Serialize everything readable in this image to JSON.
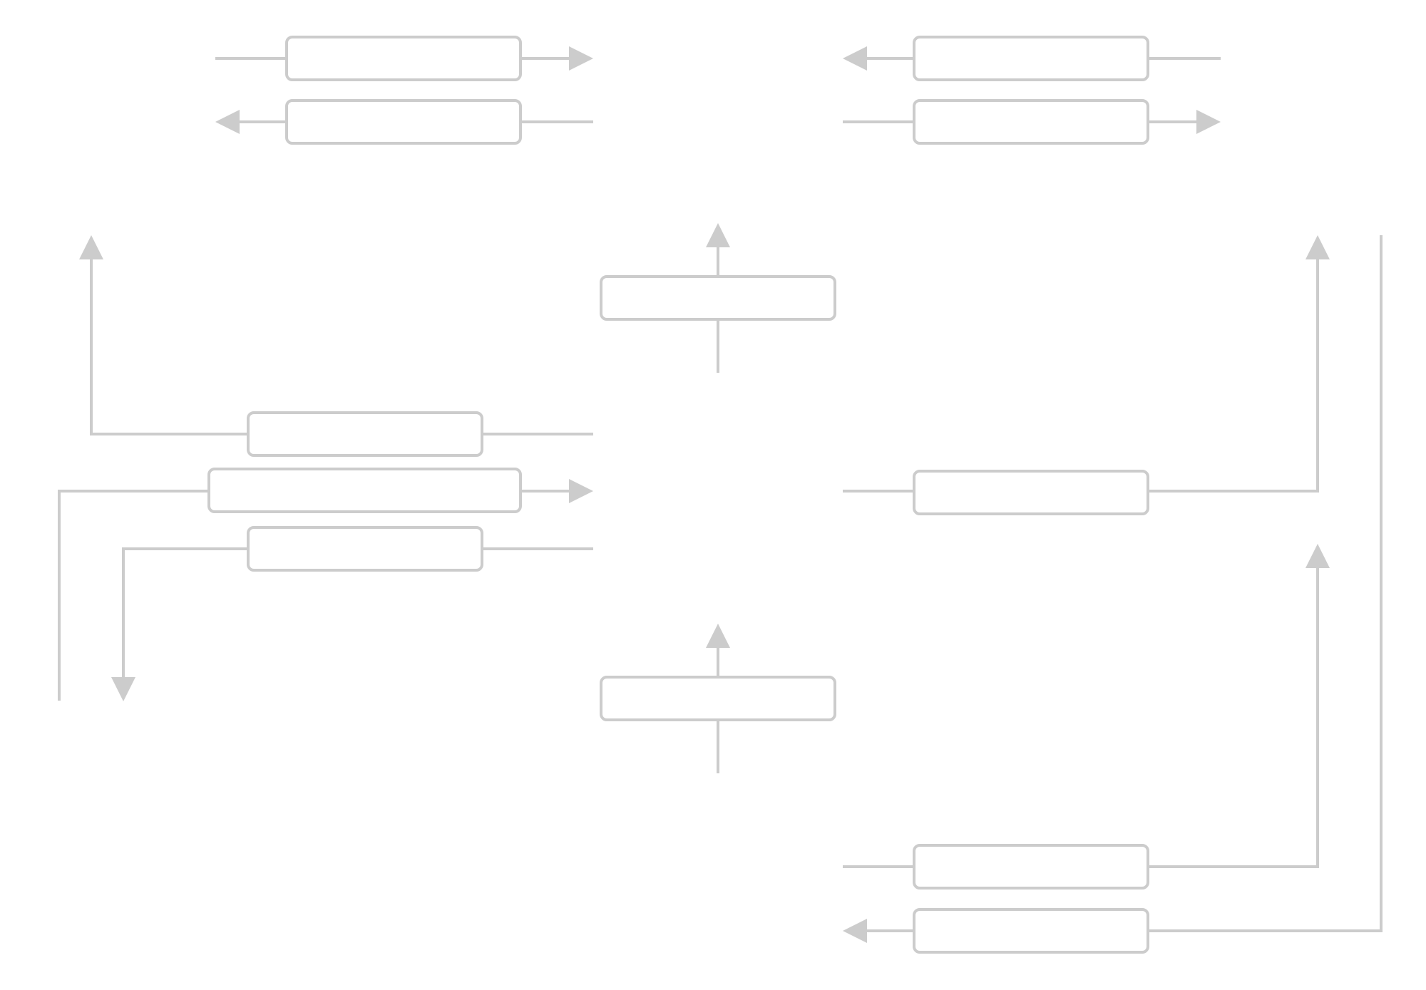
{
  "diagram": {
    "colors": {
      "background": "#ffffff",
      "stroke": "#cccccc",
      "arrowhead": "#cccccc"
    },
    "boxes": [
      {
        "id": "box-top-left-1",
        "label": ""
      },
      {
        "id": "box-top-left-2",
        "label": ""
      },
      {
        "id": "box-top-right-1",
        "label": ""
      },
      {
        "id": "box-top-right-2",
        "label": ""
      },
      {
        "id": "box-center-upper",
        "label": ""
      },
      {
        "id": "box-mid-left-1",
        "label": ""
      },
      {
        "id": "box-mid-left-2",
        "label": ""
      },
      {
        "id": "box-mid-left-3",
        "label": ""
      },
      {
        "id": "box-mid-right",
        "label": ""
      },
      {
        "id": "box-center-lower",
        "label": ""
      },
      {
        "id": "box-bottom-right-1",
        "label": ""
      },
      {
        "id": "box-bottom-right-2",
        "label": ""
      }
    ]
  }
}
